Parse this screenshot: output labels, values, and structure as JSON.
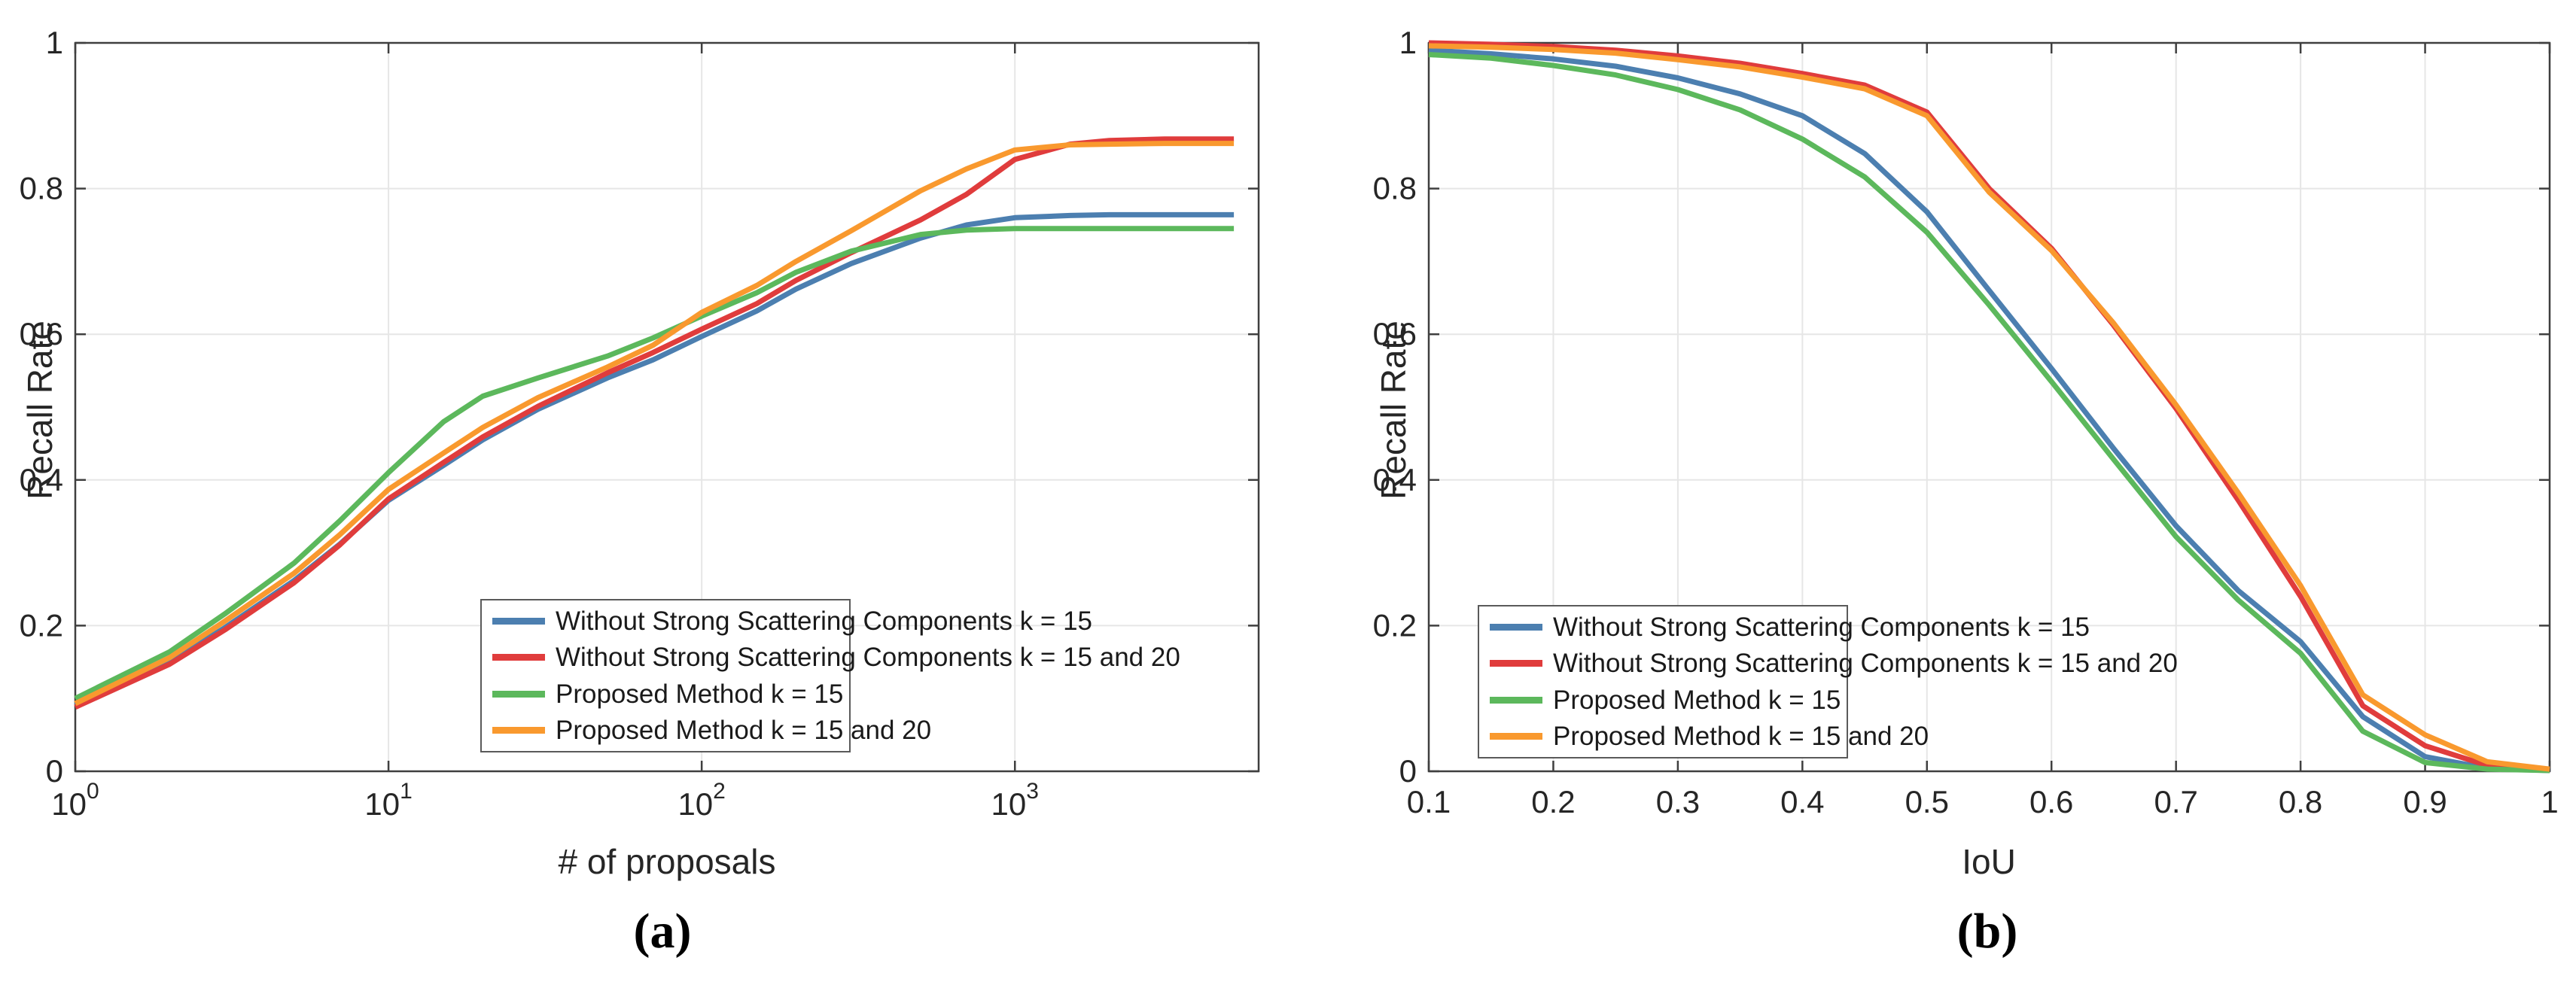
{
  "figure": {
    "background": "#ffffff",
    "text_color": "#262626",
    "gridline_color": "#e6e6e6",
    "spine_color": "#3f3f3f",
    "legend_border_color": "#5a5a5a"
  },
  "chart_data": [
    {
      "type": "line",
      "id": "a",
      "caption": "(a)",
      "title": "",
      "xlabel": "# of proposals",
      "ylabel": "Recall Rate",
      "x_scale": "log",
      "x_tick_base": "10",
      "x_tick_exponents": [
        "0",
        "1",
        "2",
        "3"
      ],
      "xlim": [
        1,
        6000
      ],
      "y_ticks": [
        "0",
        "0.2",
        "0.4",
        "0.6",
        "0.8",
        "1"
      ],
      "ylim": [
        0,
        1
      ],
      "grid": "on",
      "legend_position": "bottom-right",
      "x": [
        1,
        2,
        3,
        5,
        7,
        10,
        15,
        20,
        30,
        50,
        70,
        100,
        150,
        200,
        300,
        500,
        700,
        1000,
        1500,
        2000,
        3000,
        5000
      ],
      "series": [
        {
          "name": "Without Strong Scattering Components k = 15",
          "color": "#4c7fb0",
          "y": [
            0.09,
            0.15,
            0.197,
            0.262,
            0.312,
            0.372,
            0.42,
            0.455,
            0.497,
            0.54,
            0.565,
            0.597,
            0.632,
            0.662,
            0.697,
            0.732,
            0.75,
            0.76,
            0.763,
            0.764,
            0.764,
            0.764
          ]
        },
        {
          "name": "Without Strong Scattering Components k = 15 and 20",
          "color": "#e03c3c",
          "y": [
            0.088,
            0.147,
            0.194,
            0.259,
            0.311,
            0.374,
            0.424,
            0.459,
            0.501,
            0.547,
            0.575,
            0.607,
            0.642,
            0.674,
            0.712,
            0.757,
            0.792,
            0.84,
            0.861,
            0.866,
            0.868,
            0.868
          ]
        },
        {
          "name": "Proposed Method k = 15",
          "color": "#5cb85c",
          "y": [
            0.1,
            0.164,
            0.216,
            0.286,
            0.344,
            0.41,
            0.48,
            0.515,
            0.54,
            0.57,
            0.595,
            0.625,
            0.657,
            0.685,
            0.714,
            0.737,
            0.743,
            0.745,
            0.745,
            0.745,
            0.745,
            0.745
          ]
        },
        {
          "name": "Proposed Method k = 15 and 20",
          "color": "#f9992e",
          "y": [
            0.093,
            0.156,
            0.206,
            0.272,
            0.325,
            0.387,
            0.437,
            0.472,
            0.513,
            0.555,
            0.585,
            0.63,
            0.667,
            0.7,
            0.742,
            0.797,
            0.827,
            0.853,
            0.86,
            0.861,
            0.862,
            0.862
          ]
        }
      ]
    },
    {
      "type": "line",
      "id": "b",
      "caption": "(b)",
      "title": "",
      "xlabel": "IoU",
      "ylabel": "Recall Rate",
      "x_scale": "linear",
      "x_ticks": [
        "0.1",
        "0.2",
        "0.3",
        "0.4",
        "0.5",
        "0.6",
        "0.7",
        "0.8",
        "0.9",
        "1"
      ],
      "xlim": [
        0.1,
        1
      ],
      "y_ticks": [
        "0",
        "0.2",
        "0.4",
        "0.6",
        "0.8",
        "1"
      ],
      "ylim": [
        0,
        1
      ],
      "grid": "on",
      "legend_position": "bottom-left",
      "x": [
        0.1,
        0.15,
        0.2,
        0.25,
        0.3,
        0.35,
        0.4,
        0.45,
        0.5,
        0.55,
        0.6,
        0.65,
        0.7,
        0.75,
        0.8,
        0.85,
        0.9,
        0.95,
        1.0
      ],
      "series": [
        {
          "name": "Without Strong Scattering Components k = 15",
          "color": "#4c7fb0",
          "y": [
            0.99,
            0.985,
            0.978,
            0.968,
            0.952,
            0.93,
            0.9,
            0.848,
            0.768,
            0.66,
            0.553,
            0.443,
            0.337,
            0.248,
            0.178,
            0.075,
            0.02,
            0.004,
            0.001
          ]
        },
        {
          "name": "Without Strong Scattering Components k = 15 and 20",
          "color": "#e03c3c",
          "y": [
            1.0,
            0.998,
            0.995,
            0.99,
            0.982,
            0.972,
            0.958,
            0.942,
            0.905,
            0.8,
            0.718,
            0.612,
            0.498,
            0.372,
            0.24,
            0.09,
            0.035,
            0.008,
            0.002
          ]
        },
        {
          "name": "Proposed Method k = 15",
          "color": "#5cb85c",
          "y": [
            0.984,
            0.979,
            0.969,
            0.956,
            0.936,
            0.908,
            0.868,
            0.816,
            0.74,
            0.64,
            0.535,
            0.428,
            0.322,
            0.235,
            0.162,
            0.055,
            0.012,
            0.003,
            0.001
          ]
        },
        {
          "name": "Proposed Method k = 15 and 20",
          "color": "#f9992e",
          "y": [
            0.996,
            0.994,
            0.991,
            0.986,
            0.977,
            0.967,
            0.953,
            0.937,
            0.9,
            0.795,
            0.715,
            0.615,
            0.503,
            0.382,
            0.255,
            0.105,
            0.05,
            0.013,
            0.003
          ]
        }
      ]
    }
  ]
}
